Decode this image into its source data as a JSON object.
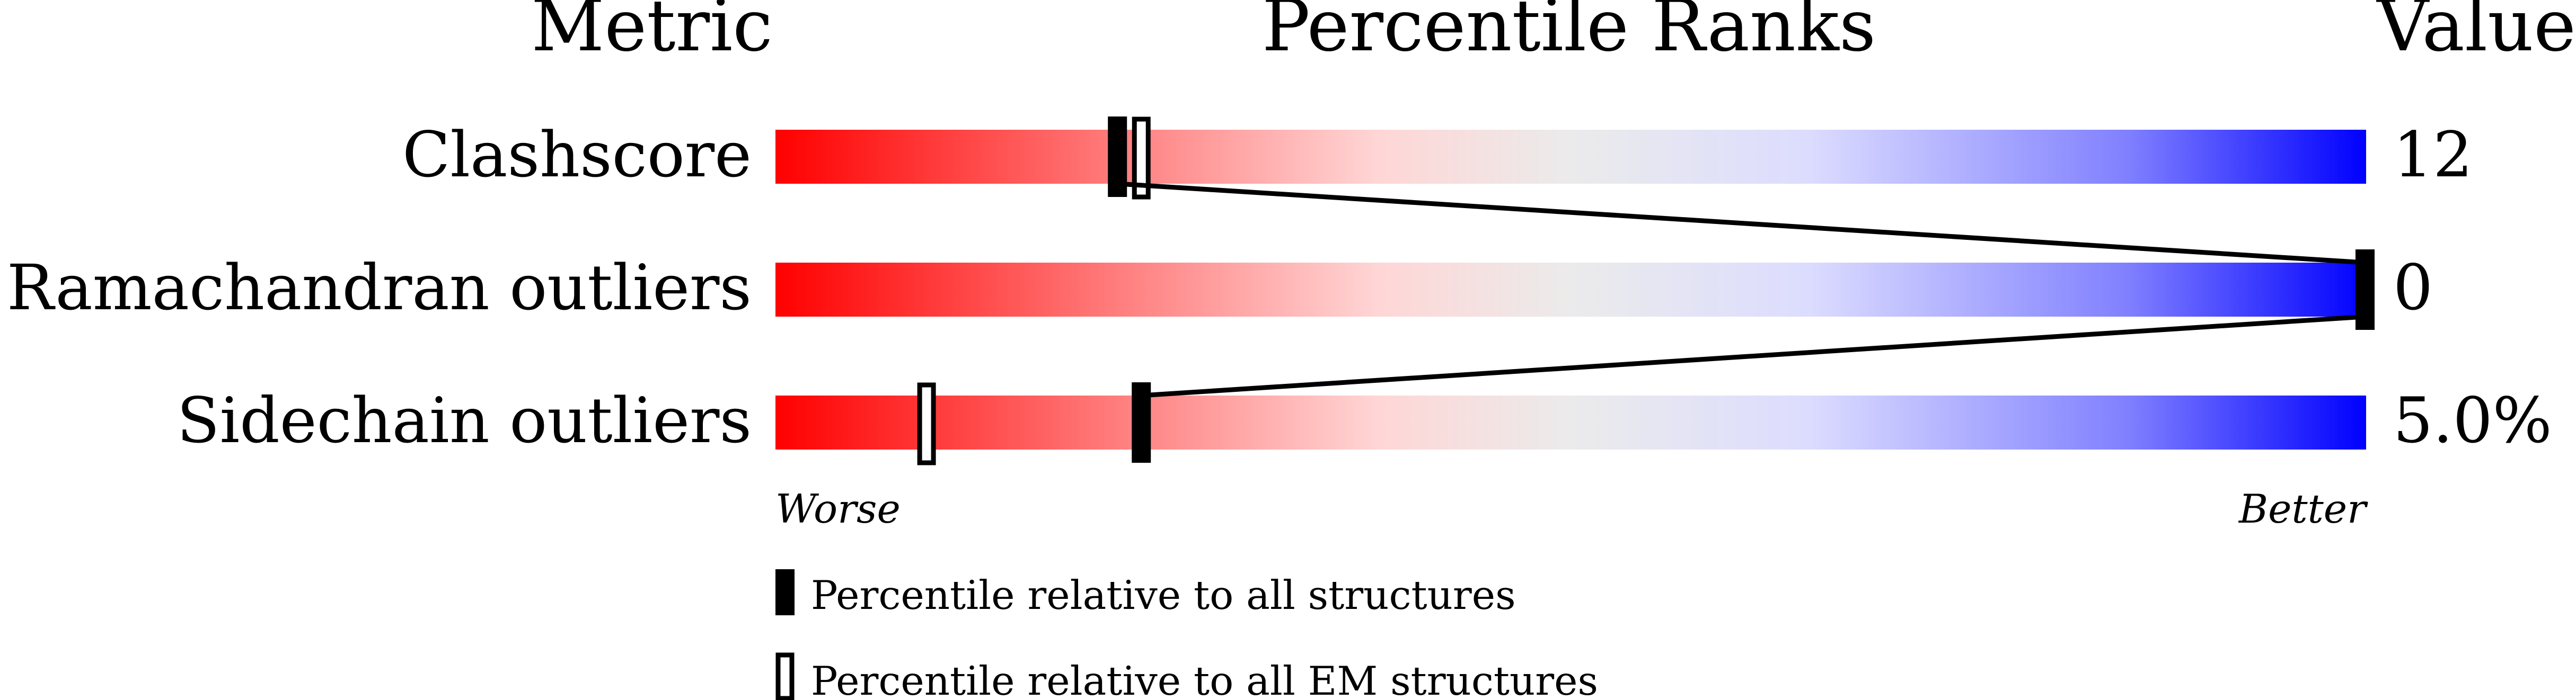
{
  "chart_data": {
    "type": "percentile-slider",
    "headers": {
      "metric": "Metric",
      "ranks": "Percentile Ranks",
      "value": "Value"
    },
    "xlim": [
      0,
      100
    ],
    "axis_labels": {
      "worse": "Worse",
      "better": "Better"
    },
    "gradient_colors": [
      "#ff0000",
      "#ff8080",
      "#ffd6d6",
      "#ebebeb",
      "#dcdcff",
      "#8080ff",
      "#0000ff"
    ],
    "rows": [
      {
        "metric": "Clashscore",
        "value": "12",
        "percentile_all": 21.5,
        "percentile_em": 23
      },
      {
        "metric": "Ramachandran outliers",
        "value": "0",
        "percentile_all": 100,
        "percentile_em": null
      },
      {
        "metric": "Sidechain outliers",
        "value": "5.0%",
        "percentile_all": 23,
        "percentile_em": 9.5
      }
    ],
    "legend": [
      {
        "marker": "filled",
        "label": "Percentile relative to all structures"
      },
      {
        "marker": "open",
        "label": "Percentile relative to all EM structures"
      }
    ]
  }
}
